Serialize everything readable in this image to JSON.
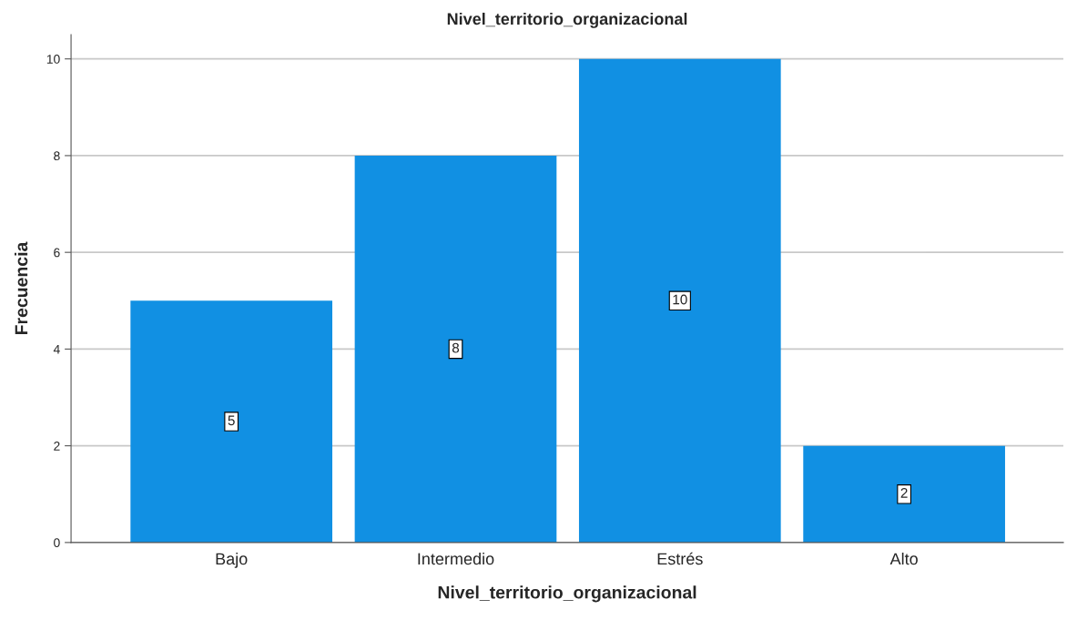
{
  "chart_data": {
    "type": "bar",
    "title": "Nivel_territorio_organizacional",
    "xlabel": "Nivel_territorio_organizacional",
    "ylabel": "Frecuencia",
    "categories": [
      "Bajo",
      "Intermedio",
      "Estrés",
      "Alto"
    ],
    "values": [
      5,
      8,
      10,
      2
    ],
    "color": "#1190e3",
    "ylim": [
      0,
      10.5
    ],
    "yticks": [
      0,
      2,
      4,
      6,
      8,
      10
    ],
    "grid": "y",
    "data_labels": true,
    "legend": false
  }
}
